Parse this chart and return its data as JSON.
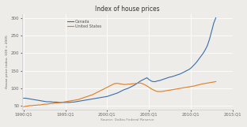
{
  "title": "Index of house prices",
  "ylabel": "House price index, 100 = 2005",
  "xlabel": "Source: Dallas Federal Reserve",
  "ylim": [
    40,
    310
  ],
  "yticks": [
    50,
    100,
    150,
    200,
    250,
    300
  ],
  "background_color": "#eeece8",
  "grid_color": "#ffffff",
  "canada_color": "#3a6ea8",
  "us_color": "#e07b20",
  "legend_labels": [
    "Canada",
    "United States"
  ],
  "x_tick_labels": [
    "1990:Q1",
    "1995:Q1",
    "2000:Q1",
    "2005:Q1",
    "2010:Q1",
    "2015:Q1"
  ],
  "x_tick_positions": [
    1990,
    1995,
    2000,
    2005,
    2010,
    2015
  ],
  "canada_data": [
    72,
    72,
    71,
    70,
    69,
    68,
    67,
    66,
    65,
    64,
    63,
    62,
    62,
    62,
    61,
    61,
    61,
    60,
    60,
    60,
    60,
    60,
    60,
    61,
    61,
    62,
    63,
    64,
    65,
    66,
    67,
    68,
    69,
    70,
    71,
    72,
    73,
    74,
    75,
    76,
    77,
    79,
    81,
    83,
    85,
    87,
    90,
    93,
    96,
    98,
    100,
    103,
    106,
    109,
    113,
    117,
    121,
    124,
    127,
    130,
    125,
    121,
    119,
    119,
    121,
    122,
    124,
    126,
    128,
    130,
    132,
    133,
    135,
    137,
    139,
    141,
    144,
    147,
    150,
    153,
    157,
    163,
    169,
    176,
    184,
    192,
    200,
    210,
    222,
    240,
    262,
    285,
    300
  ],
  "us_data": [
    48,
    49,
    50,
    51,
    51,
    52,
    52,
    53,
    53,
    54,
    55,
    55,
    56,
    57,
    57,
    58,
    59,
    59,
    60,
    61,
    62,
    63,
    64,
    65,
    66,
    67,
    68,
    70,
    72,
    74,
    76,
    78,
    80,
    82,
    85,
    88,
    91,
    94,
    97,
    100,
    103,
    106,
    109,
    112,
    114,
    114,
    113,
    112,
    111,
    111,
    112,
    112,
    113,
    113,
    114,
    115,
    115,
    113,
    110,
    107,
    103,
    99,
    96,
    93,
    91,
    91,
    91,
    92,
    93,
    94,
    95,
    96,
    97,
    98,
    99,
    100,
    101,
    102,
    103,
    104,
    105,
    106,
    107,
    109,
    110,
    112,
    113,
    114,
    115,
    116,
    117,
    118,
    119
  ],
  "start_year": 1990
}
